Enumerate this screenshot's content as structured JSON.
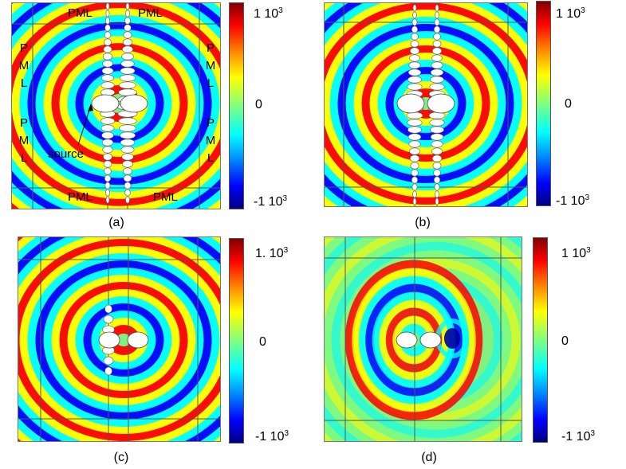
{
  "panels": [
    {
      "caption": "(a)",
      "ticks": {
        "max_num": "1 10",
        "max_exp": "3",
        "zero": "0",
        "min_num": "-1 10",
        "min_exp": "3"
      }
    },
    {
      "caption": "(b)",
      "ticks": {
        "max_num": "1 10",
        "max_exp": "3",
        "zero": "0",
        "min_num": "-1 10",
        "min_exp": "3"
      }
    },
    {
      "caption": "(c)",
      "ticks": {
        "max_num": "1. 10",
        "max_exp": "3",
        "zero": "0",
        "min_num": "-1 10",
        "min_exp": "3"
      }
    },
    {
      "caption": "(d)",
      "ticks": {
        "max_num": "1 10",
        "max_exp": "3",
        "zero": "0",
        "min_num": "-1 10",
        "min_exp": "3"
      }
    }
  ],
  "annotations": {
    "pml": "PML",
    "pml_letters": [
      "P",
      "M",
      "L"
    ],
    "source": "source"
  },
  "colormap": [
    "#800000",
    "#ff0000",
    "#ff8000",
    "#ffff00",
    "#80ff80",
    "#00ffff",
    "#0080ff",
    "#0000ff",
    "#000080"
  ]
}
